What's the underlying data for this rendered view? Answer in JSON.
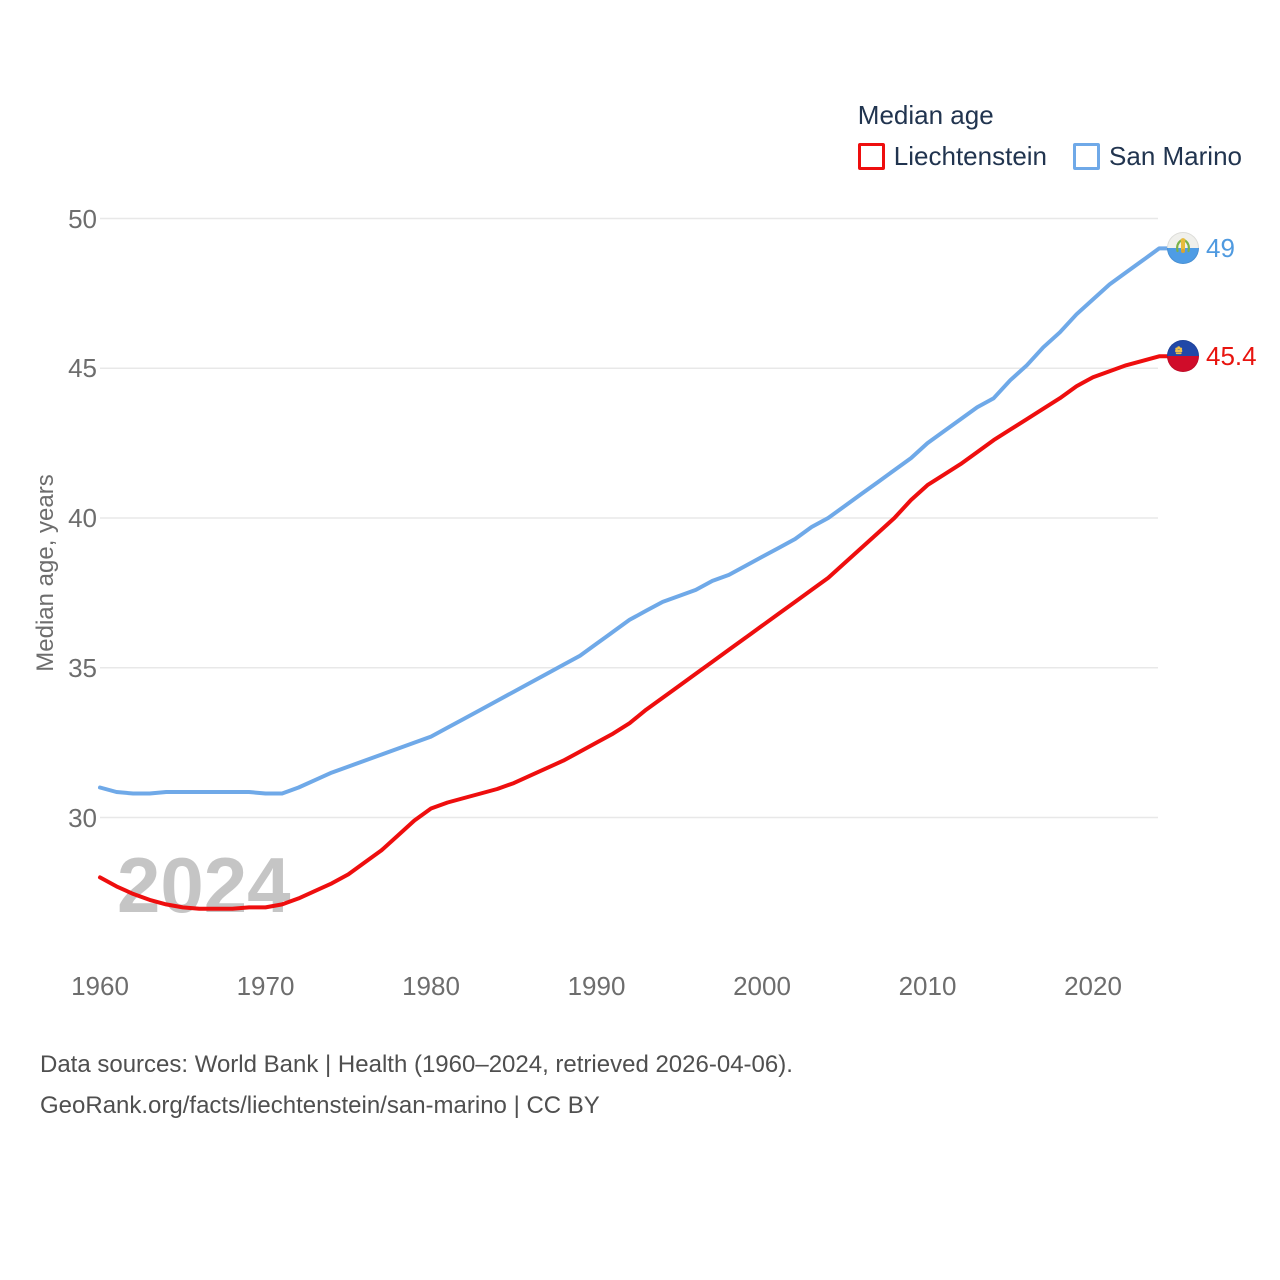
{
  "legend": {
    "title": "Median age",
    "items": [
      {
        "label": "Liechtenstein",
        "color": "#ee0e0e"
      },
      {
        "label": "San Marino",
        "color": "#6fa9e8"
      }
    ]
  },
  "y_axis": {
    "title": "Median age, years",
    "ticks": [
      50,
      45,
      40,
      35,
      30
    ]
  },
  "x_axis": {
    "ticks": [
      1960,
      1970,
      1980,
      1990,
      2000,
      2010,
      2020
    ]
  },
  "watermark": "2024",
  "end_labels": [
    {
      "series": "San Marino",
      "value": "49",
      "color": "#4f9ae0",
      "flag": "san-marino"
    },
    {
      "series": "Liechtenstein",
      "value": "45.4",
      "color": "#e8140f",
      "flag": "liechtenstein"
    }
  ],
  "footer": {
    "line1": "Data sources: World Bank | Health (1960–2024, retrieved 2026-04-06).",
    "line2": "GeoRank.org/facts/liechtenstein/san-marino | CC BY"
  },
  "chart_data": {
    "type": "line",
    "title": "Median age",
    "xlabel": "",
    "ylabel": "Median age, years",
    "xlim": [
      1960,
      2024
    ],
    "ylim": [
      26.5,
      50.5
    ],
    "grid": "horizontal",
    "legend_position": "top-right",
    "x": [
      1960,
      1961,
      1962,
      1963,
      1964,
      1965,
      1966,
      1967,
      1968,
      1969,
      1970,
      1971,
      1972,
      1973,
      1974,
      1975,
      1976,
      1977,
      1978,
      1979,
      1980,
      1981,
      1982,
      1983,
      1984,
      1985,
      1986,
      1987,
      1988,
      1989,
      1990,
      1991,
      1992,
      1993,
      1994,
      1995,
      1996,
      1997,
      1998,
      1999,
      2000,
      2001,
      2002,
      2003,
      2004,
      2005,
      2006,
      2007,
      2008,
      2009,
      2010,
      2011,
      2012,
      2013,
      2014,
      2015,
      2016,
      2017,
      2018,
      2019,
      2020,
      2021,
      2022,
      2023,
      2024
    ],
    "series": [
      {
        "name": "Liechtenstein",
        "color": "#ee0e0e",
        "end_label": "45.4",
        "values": [
          28.0,
          27.7,
          27.45,
          27.25,
          27.1,
          27.0,
          26.95,
          26.95,
          26.95,
          27.0,
          27.0,
          27.1,
          27.3,
          27.55,
          27.8,
          28.1,
          28.5,
          28.9,
          29.4,
          29.9,
          30.3,
          30.5,
          30.65,
          30.8,
          30.95,
          31.15,
          31.4,
          31.65,
          31.9,
          32.2,
          32.5,
          32.8,
          33.15,
          33.6,
          34.0,
          34.4,
          34.8,
          35.2,
          35.6,
          36.0,
          36.4,
          36.8,
          37.2,
          37.6,
          38.0,
          38.5,
          39.0,
          39.5,
          40.0,
          40.6,
          41.1,
          41.45,
          41.8,
          42.2,
          42.6,
          42.95,
          43.3,
          43.65,
          44.0,
          44.4,
          44.7,
          44.9,
          45.1,
          45.25,
          45.4
        ]
      },
      {
        "name": "San Marino",
        "color": "#6fa9e8",
        "end_label": "49",
        "values": [
          31.0,
          30.85,
          30.8,
          30.8,
          30.85,
          30.85,
          30.85,
          30.85,
          30.85,
          30.85,
          30.8,
          30.8,
          31.0,
          31.25,
          31.5,
          31.7,
          31.9,
          32.1,
          32.3,
          32.5,
          32.7,
          33.0,
          33.3,
          33.6,
          33.9,
          34.2,
          34.5,
          34.8,
          35.1,
          35.4,
          35.8,
          36.2,
          36.6,
          36.9,
          37.2,
          37.4,
          37.6,
          37.9,
          38.1,
          38.4,
          38.7,
          39.0,
          39.3,
          39.7,
          40.0,
          40.4,
          40.8,
          41.2,
          41.6,
          42.0,
          42.5,
          42.9,
          43.3,
          43.7,
          44.0,
          44.6,
          45.1,
          45.7,
          46.2,
          46.8,
          47.3,
          47.8,
          48.2,
          48.6,
          49.0
        ]
      }
    ]
  }
}
